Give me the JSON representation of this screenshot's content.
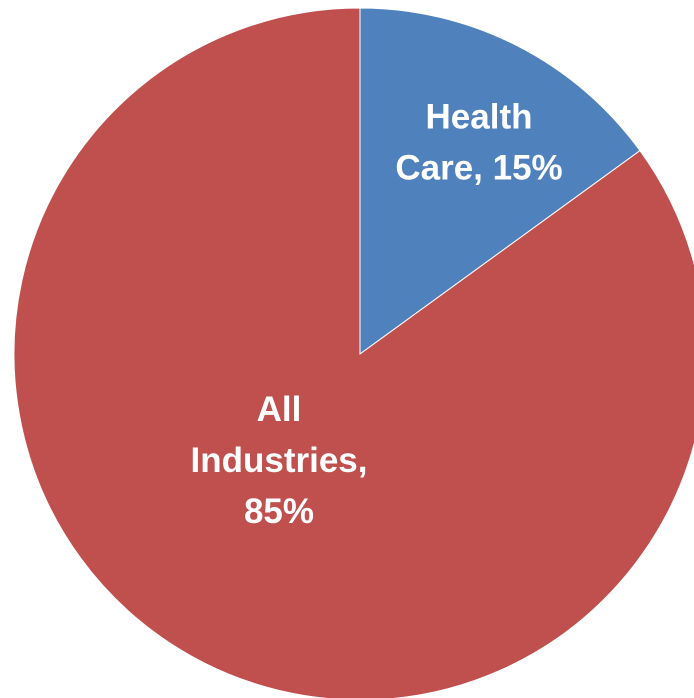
{
  "chart_data": {
    "type": "pie",
    "slices": [
      {
        "name": "Health Care",
        "value": 15,
        "color": "#4f81bd",
        "label_lines": [
          "Health",
          "Care, 15%"
        ]
      },
      {
        "name": "All Industries",
        "value": 85,
        "color": "#c0504d",
        "label_lines": [
          "All",
          "Industries,",
          "85%"
        ]
      }
    ],
    "start_angle": "12 o'clock",
    "direction": "clockwise",
    "legend": "none"
  }
}
